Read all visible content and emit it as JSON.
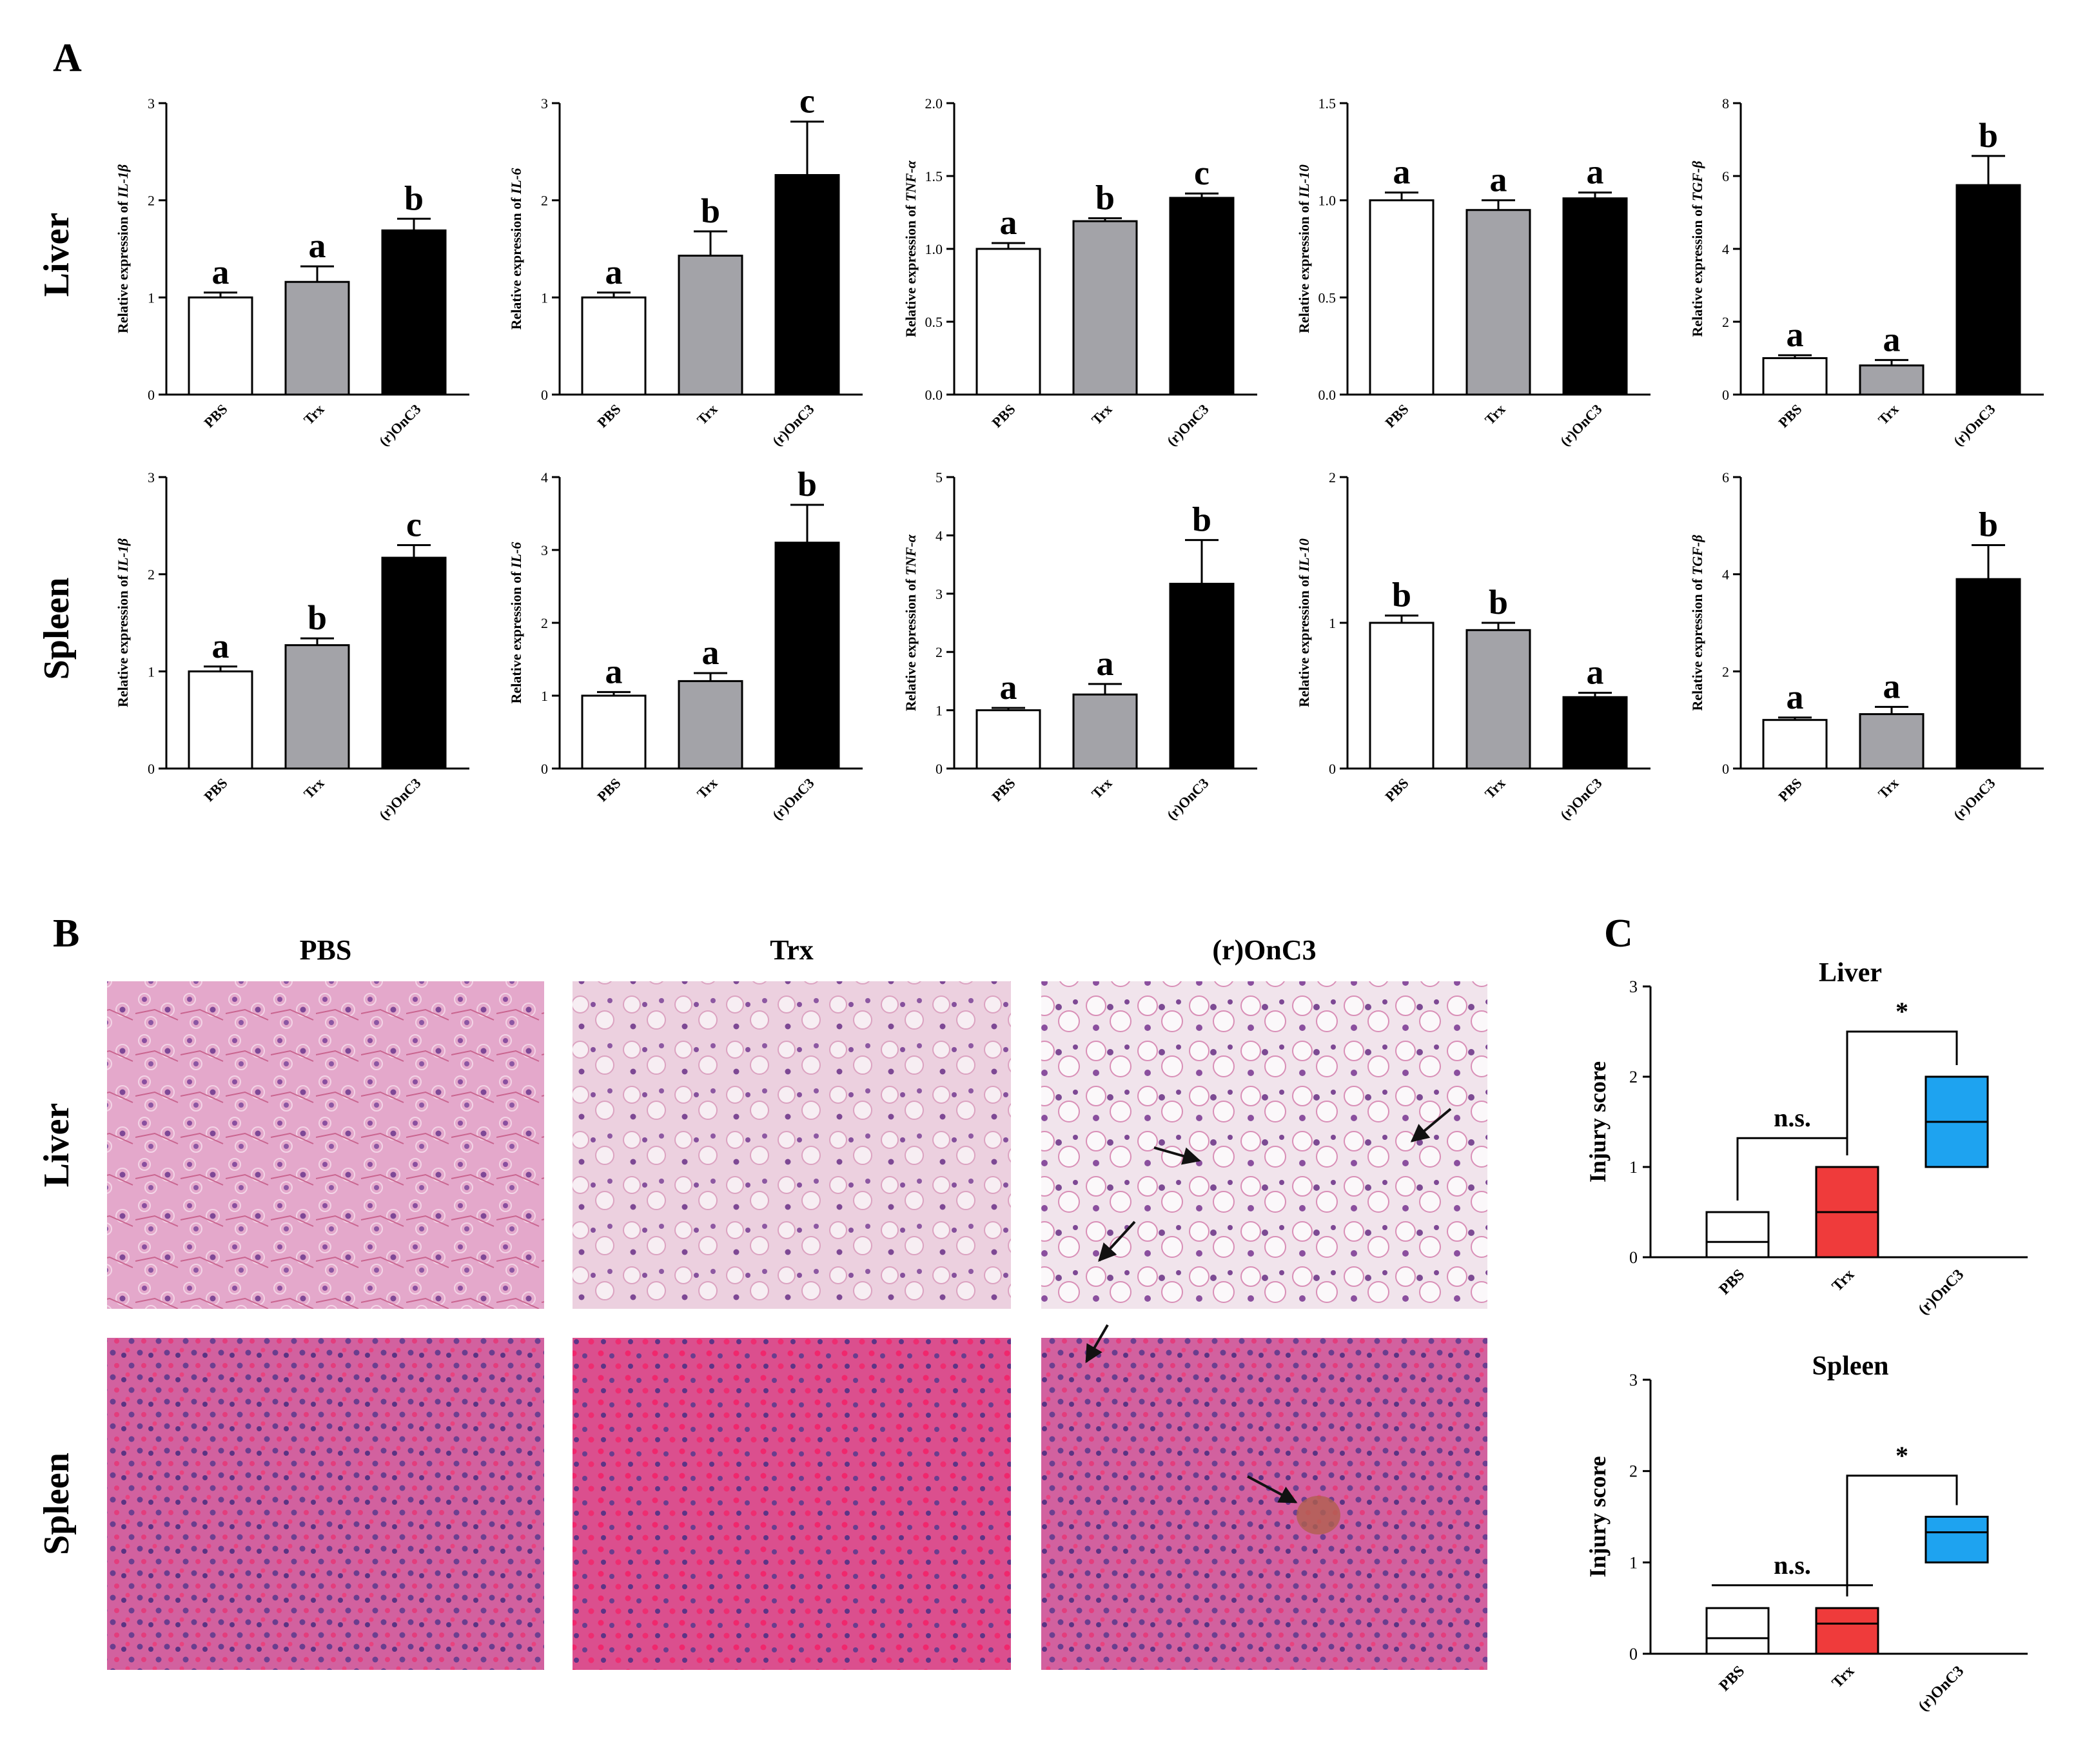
{
  "panels": {
    "a": "A",
    "b": "B",
    "c": "C"
  },
  "row_labels": [
    "Liver",
    "Spleen"
  ],
  "ylabel_prefix": "Relative expression of ",
  "gene_names": [
    "IL-1β",
    "IL-6",
    "TNF-α",
    "IL-10",
    "TGF-β"
  ],
  "histology": {
    "columns": [
      "PBS",
      "Trx",
      "(r)OnC3"
    ],
    "rows": [
      "Liver",
      "Spleen"
    ]
  },
  "colors": {
    "PBS": "#ffffff",
    "Trx": "#a3a3a8",
    "OnC3": "#000000",
    "red": "#ef3b3b",
    "blue": "#1ea3f0",
    "liver_he": "#e3a4c8",
    "spleen_he": "#c95a99"
  },
  "chart_data": [
    {
      "type": "bar",
      "row": "Liver",
      "gene": "IL-1β",
      "ylabel": "Relative expression of IL-1β",
      "categories": [
        "PBS",
        "Trx",
        "(r)OnC3"
      ],
      "values": [
        1.0,
        1.16,
        1.69
      ],
      "errors": [
        0.05,
        0.16,
        0.12
      ],
      "letters": [
        "a",
        "a",
        "b"
      ],
      "ylim": [
        0,
        3
      ],
      "yticks": [
        "0",
        "1",
        "2",
        "3"
      ]
    },
    {
      "type": "bar",
      "row": "Liver",
      "gene": "IL-6",
      "ylabel": "Relative expression of IL-6",
      "categories": [
        "PBS",
        "Trx",
        "(r)OnC3"
      ],
      "values": [
        1.0,
        1.43,
        2.26
      ],
      "errors": [
        0.05,
        0.25,
        0.55
      ],
      "letters": [
        "a",
        "b",
        "c"
      ],
      "ylim": [
        0,
        3
      ],
      "yticks": [
        "0",
        "1",
        "2",
        "3"
      ]
    },
    {
      "type": "bar",
      "row": "Liver",
      "gene": "TNF-α",
      "ylabel": "Relative expression of TNF-α",
      "categories": [
        "PBS",
        "Trx",
        "(r)OnC3"
      ],
      "values": [
        1.0,
        1.19,
        1.35
      ],
      "errors": [
        0.04,
        0.02,
        0.03
      ],
      "letters": [
        "a",
        "b",
        "c"
      ],
      "ylim": [
        0,
        2.0
      ],
      "yticks": [
        "0.0",
        "0.5",
        "1.0",
        "1.5",
        "2.0"
      ]
    },
    {
      "type": "bar",
      "row": "Liver",
      "gene": "IL-10",
      "ylabel": "Relative expression of IL-10",
      "categories": [
        "PBS",
        "Trx",
        "(r)OnC3"
      ],
      "values": [
        1.0,
        0.95,
        1.01
      ],
      "errors": [
        0.04,
        0.05,
        0.03
      ],
      "letters": [
        "a",
        "a",
        "a"
      ],
      "ylim": [
        0,
        1.5
      ],
      "yticks": [
        "0.0",
        "0.5",
        "1.0",
        "1.5"
      ]
    },
    {
      "type": "bar",
      "row": "Liver",
      "gene": "TGF-β",
      "ylabel": "Relative expression of TGF-β",
      "categories": [
        "PBS",
        "Trx",
        "(r)OnC3"
      ],
      "values": [
        1.0,
        0.8,
        5.75
      ],
      "errors": [
        0.08,
        0.15,
        0.8
      ],
      "letters": [
        "a",
        "a",
        "b"
      ],
      "ylim": [
        0,
        8
      ],
      "yticks": [
        "0",
        "2",
        "4",
        "6",
        "8"
      ]
    },
    {
      "type": "bar",
      "row": "Spleen",
      "gene": "IL-1β",
      "ylabel": "Relative expression of IL-1β",
      "categories": [
        "PBS",
        "Trx",
        "(r)OnC3"
      ],
      "values": [
        1.0,
        1.27,
        2.17
      ],
      "errors": [
        0.05,
        0.07,
        0.13
      ],
      "letters": [
        "a",
        "b",
        "c"
      ],
      "ylim": [
        0,
        3
      ],
      "yticks": [
        "0",
        "1",
        "2",
        "3"
      ]
    },
    {
      "type": "bar",
      "row": "Spleen",
      "gene": "IL-6",
      "ylabel": "Relative expression of IL-6",
      "categories": [
        "PBS",
        "Trx",
        "(r)OnC3"
      ],
      "values": [
        1.0,
        1.2,
        3.1
      ],
      "errors": [
        0.05,
        0.11,
        0.52
      ],
      "letters": [
        "a",
        "a",
        "b"
      ],
      "ylim": [
        0,
        4
      ],
      "yticks": [
        "0",
        "1",
        "2",
        "3",
        "4"
      ]
    },
    {
      "type": "bar",
      "row": "Spleen",
      "gene": "TNF-α",
      "ylabel": "Relative expression of TNF-α",
      "categories": [
        "PBS",
        "Trx",
        "(r)OnC3"
      ],
      "values": [
        1.0,
        1.27,
        3.17
      ],
      "errors": [
        0.04,
        0.18,
        0.75
      ],
      "letters": [
        "a",
        "a",
        "b"
      ],
      "ylim": [
        0,
        5
      ],
      "yticks": [
        "0",
        "1",
        "2",
        "3",
        "4",
        "5"
      ]
    },
    {
      "type": "bar",
      "row": "Spleen",
      "gene": "IL-10",
      "ylabel": "Relative expression of IL-10",
      "categories": [
        "PBS",
        "Trx",
        "(r)OnC3"
      ],
      "values": [
        1.0,
        0.95,
        0.49
      ],
      "errors": [
        0.05,
        0.05,
        0.03
      ],
      "letters": [
        "b",
        "b",
        "a"
      ],
      "ylim": [
        0,
        2
      ],
      "yticks": [
        "0",
        "1",
        "2"
      ]
    },
    {
      "type": "bar",
      "row": "Spleen",
      "gene": "TGF-β",
      "ylabel": "Relative expression of TGF-β",
      "categories": [
        "PBS",
        "Trx",
        "(r)OnC3"
      ],
      "values": [
        1.0,
        1.12,
        3.9
      ],
      "errors": [
        0.05,
        0.15,
        0.7
      ],
      "letters": [
        "a",
        "a",
        "b"
      ],
      "ylim": [
        0,
        6
      ],
      "yticks": [
        "0",
        "2",
        "4",
        "6"
      ]
    },
    {
      "type": "box",
      "title": "Liver",
      "ylabel": "Injury score",
      "categories": [
        "PBS",
        "Trx",
        "(r)OnC3"
      ],
      "boxes": [
        {
          "min": 0,
          "median": 0.17,
          "max": 0.5
        },
        {
          "min": 0,
          "median": 0.5,
          "max": 1.0
        },
        {
          "min": 1.0,
          "median": 1.5,
          "max": 2.0
        }
      ],
      "ylim": [
        0,
        3
      ],
      "yticks": [
        "0",
        "1",
        "2",
        "3"
      ],
      "annotations": [
        {
          "from": 0,
          "to": 1,
          "label": "n.s.",
          "level": 1.32,
          "shape": "bracket"
        },
        {
          "from": 1,
          "to": 2,
          "label": "*",
          "level": 2.5,
          "shape": "bracket"
        }
      ]
    },
    {
      "type": "box",
      "title": "Spleen",
      "ylabel": "Injury score",
      "categories": [
        "PBS",
        "Trx",
        "(r)OnC3"
      ],
      "boxes": [
        {
          "min": 0,
          "median": 0.17,
          "max": 0.5
        },
        {
          "min": 0,
          "median": 0.33,
          "max": 0.5
        },
        {
          "min": 1.0,
          "median": 1.33,
          "max": 1.5
        }
      ],
      "ylim": [
        0,
        3
      ],
      "yticks": [
        "0",
        "1",
        "2",
        "3"
      ],
      "annotations": [
        {
          "from": 0,
          "to": 1,
          "label": "n.s.",
          "level": 0.75,
          "shape": "line"
        },
        {
          "from": 1,
          "to": 2,
          "label": "*",
          "level": 1.95,
          "shape": "bracket"
        }
      ]
    }
  ]
}
